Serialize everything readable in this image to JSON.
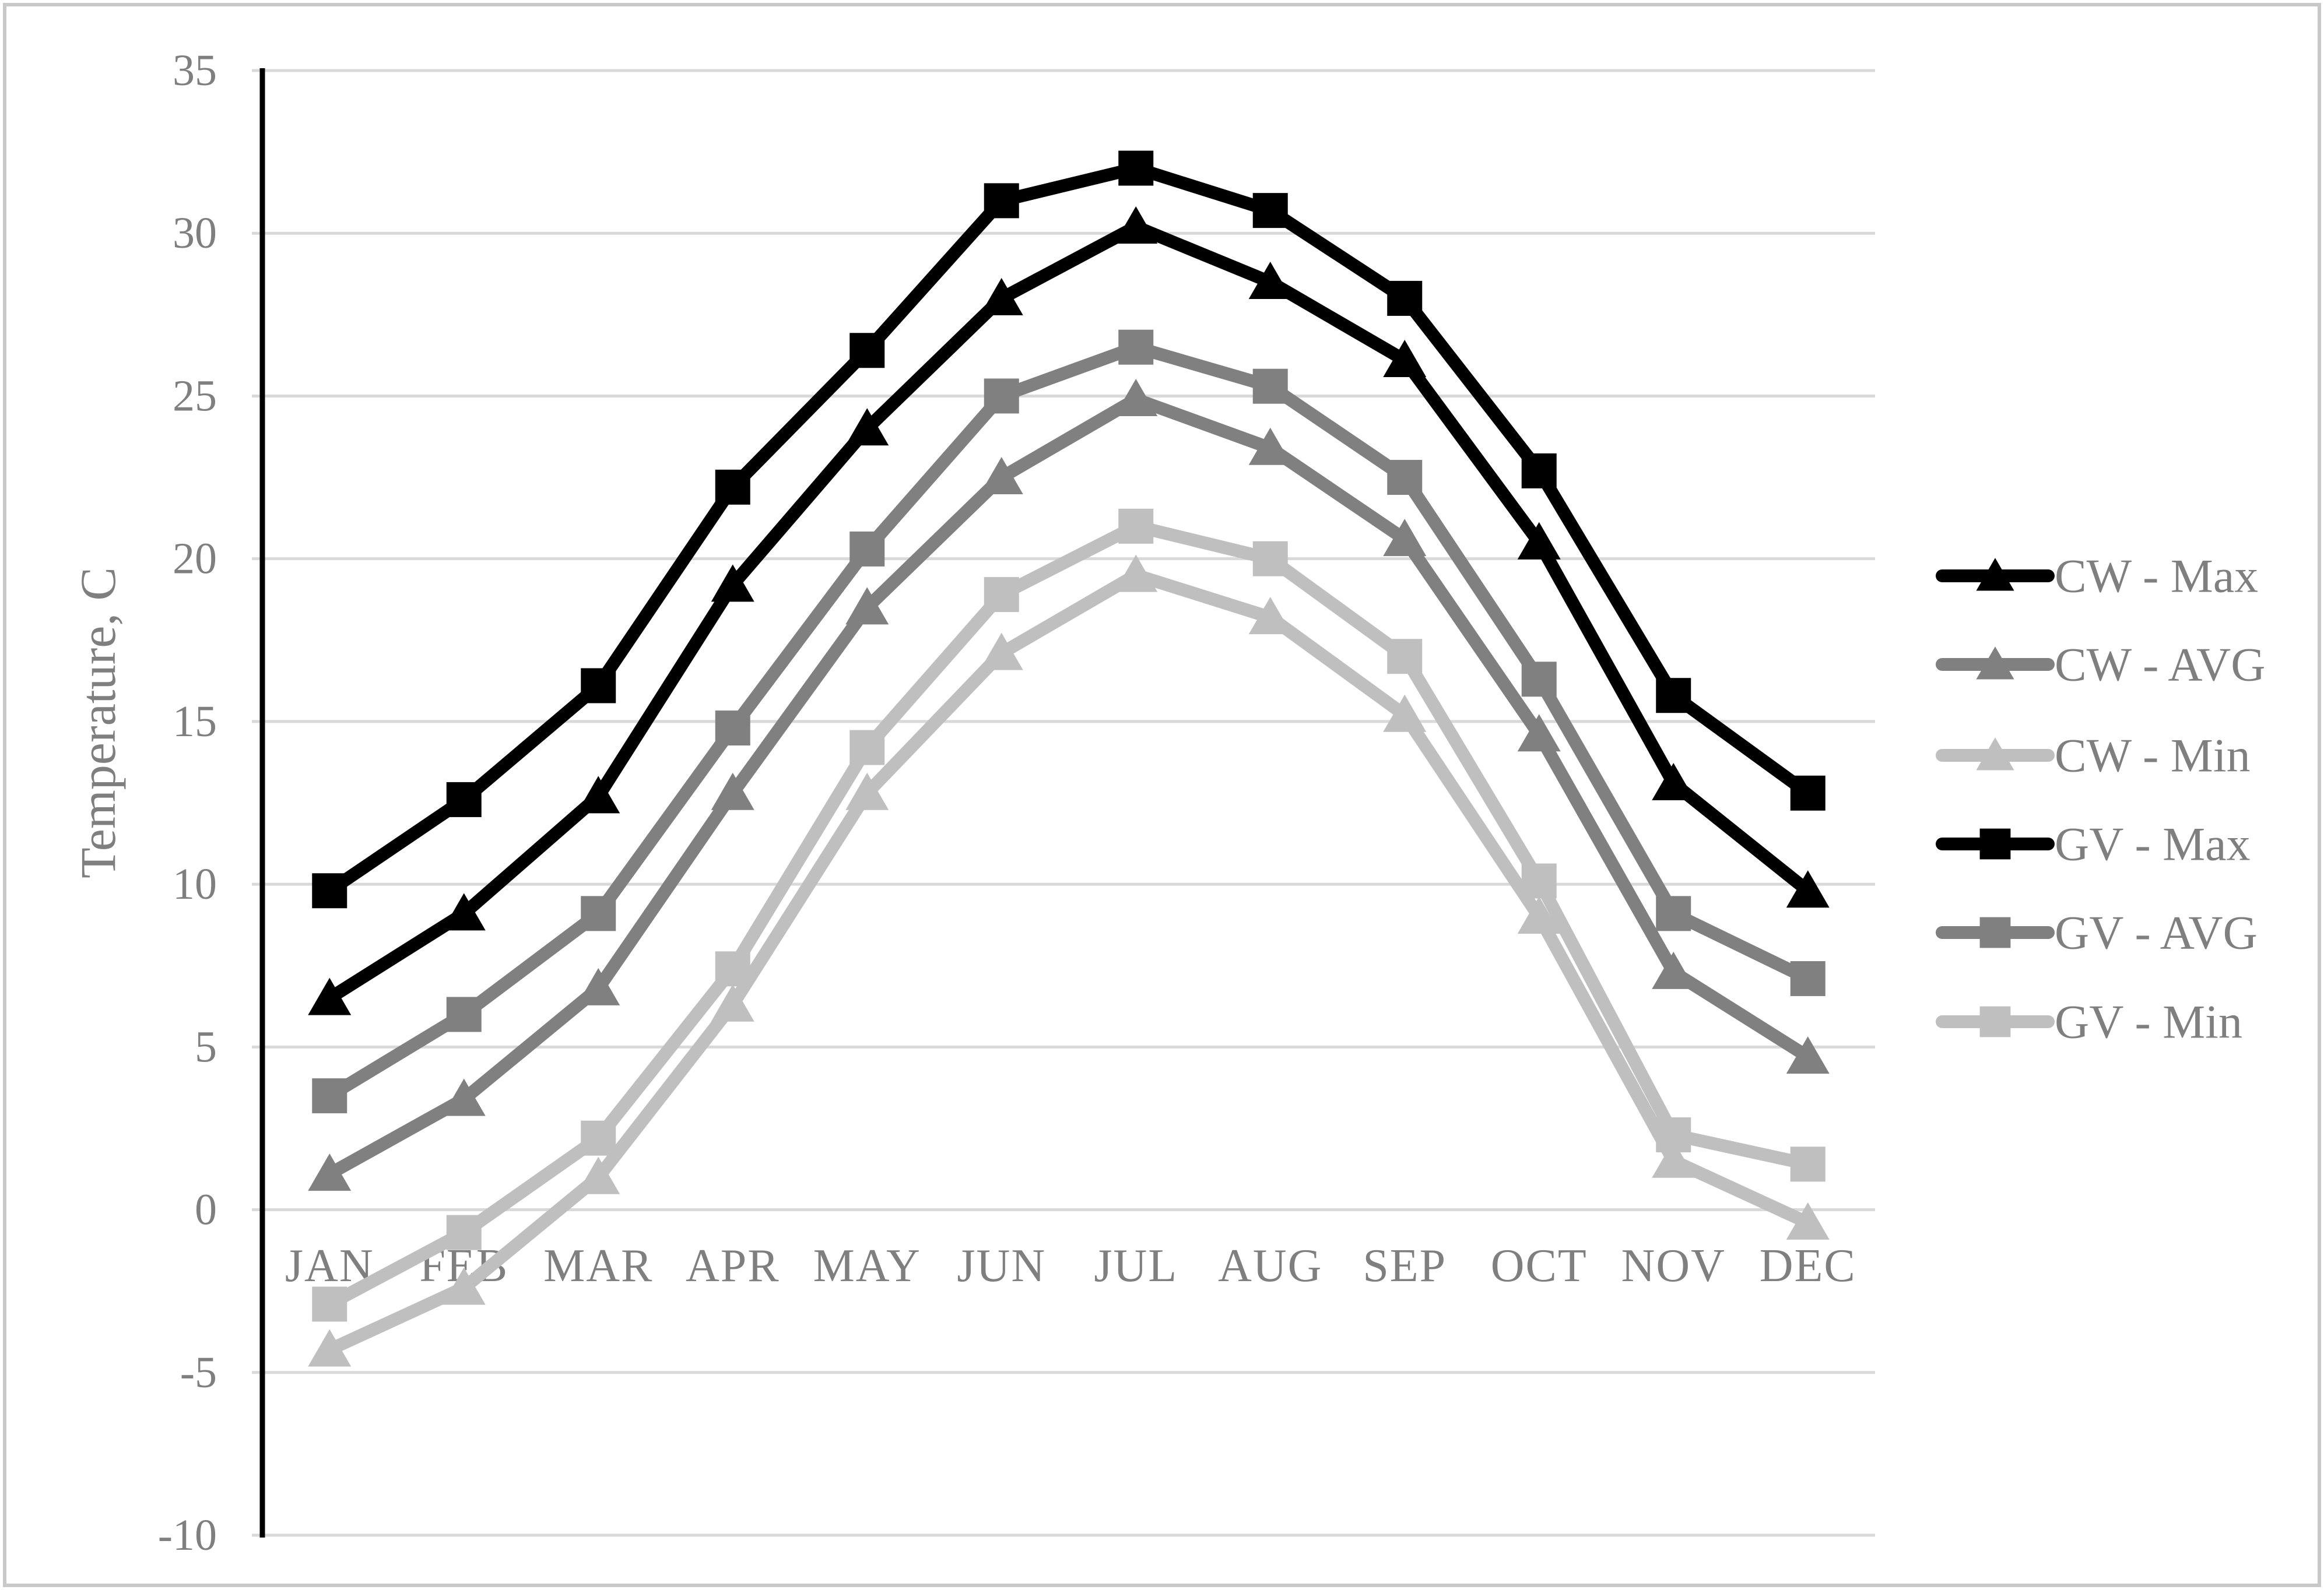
{
  "chart": {
    "y_axis_title": "Temperature, C",
    "colors": {
      "series_black": "#000000",
      "series_dark_gray": "#808080",
      "series_light_gray": "#bfbfbf",
      "gridline": "#d9d9d9",
      "axis_line": "#000000",
      "text": "#7f7f7f",
      "border": "#c8c8c8",
      "background": "#ffffff"
    }
  },
  "chart_data": {
    "type": "line",
    "title": "",
    "xlabel": "",
    "ylabel": "Temperature, C",
    "ylim": [
      -10,
      35
    ],
    "y_ticks": [
      35,
      30,
      25,
      20,
      15,
      10,
      5,
      0,
      -5,
      -10
    ],
    "grid": "horizontal",
    "legend_position": "right",
    "categories": [
      "JAN",
      "FEB",
      "MAR",
      "APR",
      "MAY",
      "JUN",
      "JUL",
      "AUG",
      "SEP",
      "OCT",
      "NOV",
      "DEC"
    ],
    "series": [
      {
        "name": "CW - Max",
        "marker": "triangle",
        "color": "#000000",
        "values": [
          6.5,
          9.1,
          12.7,
          19.2,
          24.0,
          28.0,
          30.2,
          28.5,
          26.1,
          20.5,
          13.1,
          9.8
        ]
      },
      {
        "name": "CW - AVG",
        "marker": "triangle",
        "color": "#808080",
        "values": [
          1.1,
          3.4,
          6.8,
          12.8,
          18.5,
          22.5,
          24.9,
          23.4,
          20.6,
          14.6,
          7.3,
          4.7
        ]
      },
      {
        "name": "CW - Min",
        "marker": "triangle",
        "color": "#bfbfbf",
        "values": [
          -4.3,
          -2.4,
          1.0,
          6.3,
          12.8,
          17.1,
          19.5,
          18.2,
          15.2,
          9.0,
          1.5,
          -0.4
        ]
      },
      {
        "name": "GV - Max",
        "marker": "square",
        "color": "#000000",
        "values": [
          9.8,
          12.6,
          16.1,
          22.2,
          26.4,
          31.0,
          32.0,
          30.7,
          28.0,
          22.7,
          15.8,
          12.8
        ]
      },
      {
        "name": "GV - AVG",
        "marker": "square",
        "color": "#808080",
        "values": [
          3.5,
          6.0,
          9.1,
          14.8,
          20.3,
          25.0,
          26.5,
          25.3,
          22.5,
          16.3,
          9.1,
          7.1
        ]
      },
      {
        "name": "GV - Min",
        "marker": "square",
        "color": "#bfbfbf",
        "values": [
          -2.9,
          -0.7,
          2.2,
          7.4,
          14.2,
          18.9,
          21.0,
          20.0,
          17.0,
          10.1,
          2.3,
          1.4
        ]
      }
    ]
  }
}
